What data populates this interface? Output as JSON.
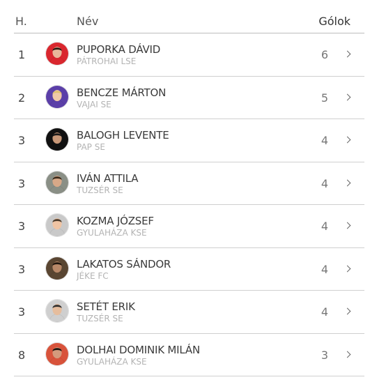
{
  "header": {
    "rank_label": "H.",
    "name_label": "Név",
    "goals_label": "Gólok"
  },
  "rows": [
    {
      "rank": "1",
      "name": "PUPORKA DÁVID",
      "club": "PÁTROHAI LSE",
      "goals": "6",
      "avatar_color": "#d9272e",
      "avatar_icon": "player-photo-icon"
    },
    {
      "rank": "2",
      "name": "BENCZE MÁRTON",
      "club": "VAJAI SE",
      "goals": "5",
      "avatar_color": "#5b3fa8",
      "avatar_icon": "player-photo-icon"
    },
    {
      "rank": "3",
      "name": "BALOGH LEVENTE",
      "club": "PAP SE",
      "goals": "4",
      "avatar_color": "#111111",
      "avatar_icon": "player-photo-icon"
    },
    {
      "rank": "3",
      "name": "IVÁN ATTILA",
      "club": "TUZSÉR SE",
      "goals": "4",
      "avatar_color": "#8a8f86",
      "avatar_icon": "player-photo-icon"
    },
    {
      "rank": "3",
      "name": "KOZMA JÓZSEF",
      "club": "GYULAHÁZA KSE",
      "goals": "4",
      "avatar_color": "#c9c9c9",
      "avatar_icon": "player-photo-icon"
    },
    {
      "rank": "3",
      "name": "LAKATOS SÁNDOR",
      "club": "JÉKE FC",
      "goals": "4",
      "avatar_color": "#5a4632",
      "avatar_icon": "player-photo-icon"
    },
    {
      "rank": "3",
      "name": "SETÉT ERIK",
      "club": "TUZSÉR SE",
      "goals": "4",
      "avatar_color": "#cfcfcf",
      "avatar_icon": "player-photo-icon"
    },
    {
      "rank": "8",
      "name": "DOLHAI DOMINIK MILÁN",
      "club": "GYULAHÁZA KSE",
      "goals": "3",
      "avatar_color": "#d8533b",
      "avatar_icon": "player-photo-icon"
    }
  ]
}
